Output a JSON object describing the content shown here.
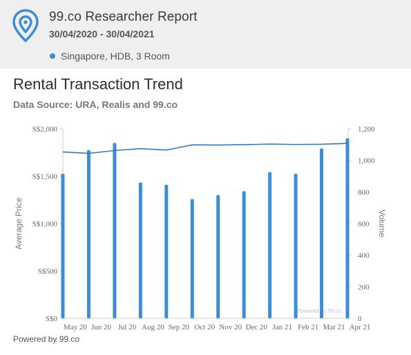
{
  "header": {
    "title": "99.co Researcher Report",
    "date_range": "30/04/2020 - 30/04/2021",
    "legend_label": "Singapore, HDB, 3 Room",
    "accent_color": "#3a8dd6",
    "logo_icon": "location-pin-icon"
  },
  "chart": {
    "title": "Rental Transaction Trend",
    "subtitle": "Data Source: URA, Realis and 99.co",
    "watermark": "Powered by 99.co"
  },
  "footer": {
    "text": "Powered by 99.co"
  },
  "chart_data": {
    "type": "bar+line",
    "categories": [
      "May 20",
      "Jun 20",
      "Jul 20",
      "Aug 20",
      "Sep 20",
      "Oct 20",
      "Nov 20",
      "Dec 20",
      "Jan 21",
      "Feb 21",
      "Mar 21",
      "Apr 21"
    ],
    "left_axis": {
      "title": "Average Price",
      "ticks": [
        "S$0",
        "S$500",
        "S$1,000",
        "S$1,500",
        "S$2,000"
      ],
      "range": [
        0,
        2000
      ]
    },
    "right_axis": {
      "title": "Volume",
      "ticks": [
        "0",
        "200",
        "400",
        "600",
        "800",
        "1,000",
        "1,200"
      ],
      "range": [
        0,
        1200
      ]
    },
    "series": [
      {
        "axis": "right",
        "type": "bar",
        "color": "#3a8dd6",
        "values": [
          915,
          1065,
          1110,
          860,
          845,
          755,
          780,
          805,
          925,
          915,
          1075,
          1140
        ]
      },
      {
        "axis": "left",
        "type": "line",
        "color": "#2e7bc4",
        "values": [
          1755,
          1740,
          1770,
          1790,
          1775,
          1830,
          1828,
          1832,
          1838,
          1834,
          1836,
          1845
        ]
      }
    ]
  }
}
